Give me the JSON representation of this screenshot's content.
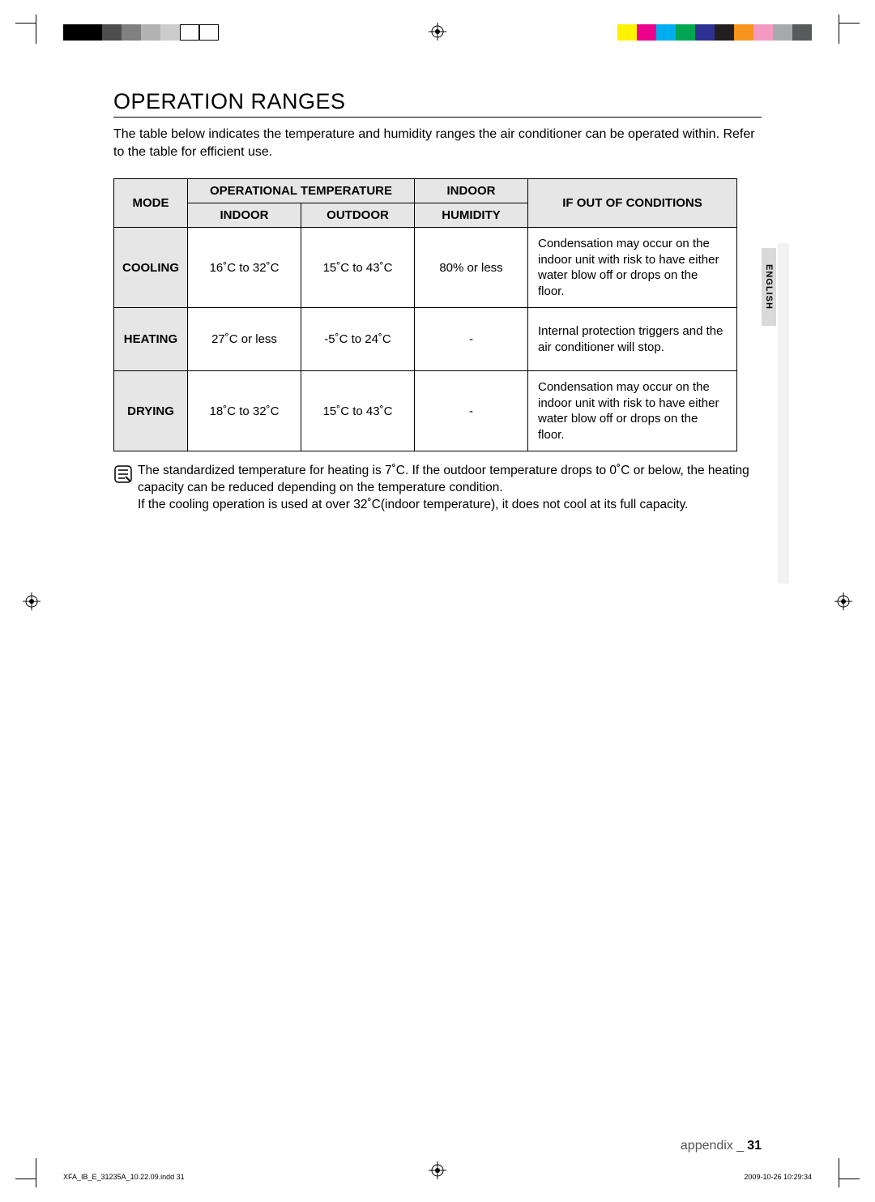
{
  "printer_marks": {
    "left_swatches": [
      "#000000",
      "#000000",
      "#4d4d4d",
      "#808080",
      "#b3b3b3",
      "#cccccc",
      "#ffffff",
      "#ffffff"
    ],
    "left_outline_last_two": true,
    "right_swatches": [
      "#fff200",
      "#ec008c",
      "#00aeef",
      "#00a651",
      "#2e3192",
      "#231f20",
      "#f7941d",
      "#f49ac1",
      "#a7a9ac",
      "#58595b"
    ]
  },
  "title": "OPERATION RANGES",
  "intro": "The table below indicates the temperature and humidity ranges the air conditioner can be operated within. Refer to the table for efficient use.",
  "table": {
    "header": {
      "mode": "MODE",
      "op_temp": "OPERATIONAL TEMPERATURE",
      "indoor": "INDOOR",
      "outdoor": "OUTDOOR",
      "humidity_top": "INDOOR",
      "humidity_bottom": "HUMIDITY",
      "conditions": "IF OUT OF CONDITIONS"
    },
    "rows": [
      {
        "mode": "COOLING",
        "indoor": "16˚C to 32˚C",
        "outdoor": "15˚C to 43˚C",
        "humidity": "80% or less",
        "cond": "Condensation may occur on the indoor unit with risk to have either water blow off or drops on the floor."
      },
      {
        "mode": "HEATING",
        "indoor": "27˚C or less",
        "outdoor": "-5˚C to 24˚C",
        "humidity": "-",
        "cond": "Internal protection triggers and the air conditioner will stop."
      },
      {
        "mode": "DRYING",
        "indoor": "18˚C to 32˚C",
        "outdoor": "15˚C to 43˚C",
        "humidity": "-",
        "cond": "Condensation may occur on the indoor unit with risk to have either water blow off or drops on the floor."
      }
    ]
  },
  "note": {
    "line1": "The standardized temperature for heating is 7˚C. If the outdoor temperature drops to 0˚C or below, the heating capacity can be reduced depending on the temperature condition.",
    "line2": "If the cooling operation is used at over 32˚C(indoor temperature), it does not cool at its full capacity."
  },
  "side_tab": "ENGLISH",
  "footer": {
    "label": "appendix _",
    "page": "31"
  },
  "imprint": {
    "file": "XFA_IB_E_31235A_10.22.09.indd   31",
    "datetime": "2009-10-26   10:29:34"
  }
}
